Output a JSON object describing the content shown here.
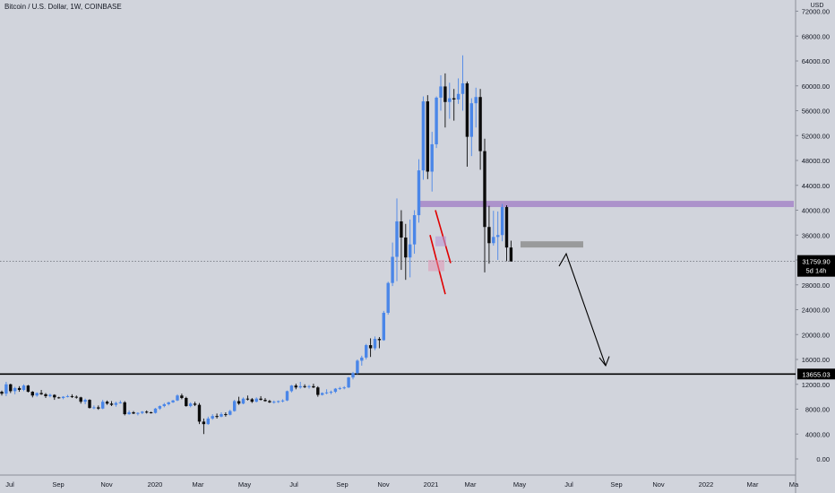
{
  "header": {
    "title": "Bitcoin / U.S. Dollar, 1W, COINBASE"
  },
  "axis": {
    "currency": "USD",
    "y_ticks": [
      "72000.00",
      "68000.00",
      "64000.00",
      "60000.00",
      "56000.00",
      "52000.00",
      "48000.00",
      "44000.00",
      "40000.00",
      "36000.00",
      "32000.00",
      "28000.00",
      "24000.00",
      "20000.00",
      "16000.00",
      "12000.00",
      "8000.00",
      "4000.00",
      "0.00"
    ],
    "x_ticks": [
      "Jul",
      "Sep",
      "Nov",
      "2020",
      "Mar",
      "May",
      "Jul",
      "Sep",
      "Nov",
      "2021",
      "Mar",
      "May",
      "Jul",
      "Sep",
      "Nov",
      "2022",
      "Mar",
      "Ma"
    ]
  },
  "price_label": {
    "value": "31759.90",
    "countdown": "5d 14h"
  },
  "support_label": "13655.03",
  "colors": {
    "background": "#d1d4dc",
    "up": "#4a86e8",
    "down": "#0b0b0b",
    "purple_zone": "#a78bc9",
    "gray_zone": "#8f8f8f",
    "red_line": "#e00000"
  },
  "chart_data": {
    "type": "candlestick",
    "timeframe": "1W",
    "ylim": [
      -2000,
      74000
    ],
    "y_scale": "linear",
    "grid": false,
    "current_price": 31759.9,
    "support_level": 13655.03,
    "resistance_zone": [
      40500,
      41500
    ],
    "pivot_zone": [
      34000,
      35000
    ],
    "candles": [
      [
        10800,
        11000,
        10200,
        10500
      ],
      [
        10500,
        12400,
        10100,
        12000
      ],
      [
        12000,
        12100,
        10600,
        10900
      ],
      [
        10900,
        11600,
        10400,
        11400
      ],
      [
        11400,
        11700,
        10800,
        11100
      ],
      [
        11100,
        12000,
        10900,
        11800
      ],
      [
        11800,
        11900,
        10700,
        10800
      ],
      [
        10800,
        10900,
        9900,
        10200
      ],
      [
        10200,
        10700,
        10000,
        10600
      ],
      [
        10600,
        11100,
        10300,
        10400
      ],
      [
        10400,
        10600,
        9800,
        10100
      ],
      [
        10100,
        10500,
        9900,
        10300
      ],
      [
        10300,
        10400,
        9500,
        9900
      ],
      [
        9900,
        10000,
        9700,
        9800
      ],
      [
        9800,
        10100,
        9600,
        10000
      ],
      [
        10000,
        10300,
        9900,
        10100
      ],
      [
        10100,
        10400,
        9800,
        10000
      ],
      [
        10000,
        10200,
        9700,
        9900
      ],
      [
        9900,
        10000,
        8900,
        9200
      ],
      [
        9200,
        9700,
        8800,
        9500
      ],
      [
        9500,
        9600,
        8100,
        8200
      ],
      [
        8200,
        8600,
        8000,
        8300
      ],
      [
        8300,
        8600,
        7900,
        8100
      ],
      [
        8100,
        9500,
        8000,
        9200
      ],
      [
        9200,
        9400,
        8700,
        8900
      ],
      [
        8900,
        9300,
        8500,
        8700
      ],
      [
        8700,
        9200,
        8400,
        9000
      ],
      [
        9000,
        9400,
        8900,
        9100
      ],
      [
        9100,
        9300,
        7000,
        7200
      ],
      [
        7200,
        7800,
        7100,
        7500
      ],
      [
        7500,
        7700,
        7200,
        7300
      ],
      [
        7300,
        7500,
        7000,
        7400
      ],
      [
        7400,
        7700,
        7200,
        7600
      ],
      [
        7600,
        7800,
        7300,
        7500
      ],
      [
        7500,
        7600,
        7300,
        7400
      ],
      [
        7400,
        8200,
        7300,
        8100
      ],
      [
        8100,
        8600,
        7900,
        8500
      ],
      [
        8500,
        9000,
        8300,
        8800
      ],
      [
        8800,
        9200,
        8600,
        9100
      ],
      [
        9100,
        9500,
        9000,
        9400
      ],
      [
        9400,
        10400,
        9300,
        10200
      ],
      [
        10200,
        10500,
        9600,
        9800
      ],
      [
        9800,
        10000,
        8400,
        8500
      ],
      [
        8500,
        9100,
        8300,
        8900
      ],
      [
        8900,
        9200,
        8500,
        8700
      ],
      [
        8700,
        9000,
        5600,
        6000
      ],
      [
        6000,
        6500,
        4000,
        5600
      ],
      [
        5600,
        6800,
        5500,
        6500
      ],
      [
        6500,
        7200,
        6300,
        6900
      ],
      [
        6900,
        7300,
        6500,
        6800
      ],
      [
        6800,
        7500,
        6700,
        7200
      ],
      [
        7200,
        7500,
        6800,
        7100
      ],
      [
        7100,
        7900,
        7000,
        7700
      ],
      [
        7700,
        9500,
        7600,
        9300
      ],
      [
        9300,
        10000,
        8700,
        8900
      ],
      [
        8900,
        9900,
        8800,
        9700
      ],
      [
        9700,
        10200,
        9400,
        9600
      ],
      [
        9600,
        9800,
        9000,
        9200
      ],
      [
        9200,
        9900,
        9100,
        9700
      ],
      [
        9700,
        10100,
        9400,
        9500
      ],
      [
        9500,
        9800,
        9200,
        9300
      ],
      [
        9300,
        9500,
        9000,
        9100
      ],
      [
        9100,
        9400,
        8900,
        9200
      ],
      [
        9200,
        9400,
        9000,
        9300
      ],
      [
        9300,
        9600,
        9100,
        9400
      ],
      [
        9400,
        11000,
        9300,
        10900
      ],
      [
        10900,
        11900,
        10700,
        11800
      ],
      [
        11800,
        12100,
        11200,
        11500
      ],
      [
        11500,
        12400,
        11300,
        11700
      ],
      [
        11700,
        12000,
        11400,
        11600
      ],
      [
        11600,
        11900,
        11300,
        11700
      ],
      [
        11700,
        12100,
        11400,
        11500
      ],
      [
        11500,
        11700,
        10000,
        10300
      ],
      [
        10300,
        10700,
        10200,
        10600
      ],
      [
        10600,
        11200,
        10400,
        10700
      ],
      [
        10700,
        11000,
        10400,
        10800
      ],
      [
        10800,
        11400,
        10600,
        11300
      ],
      [
        11300,
        11600,
        11100,
        11400
      ],
      [
        11400,
        11700,
        11200,
        11500
      ],
      [
        11500,
        13200,
        11400,
        13100
      ],
      [
        13100,
        14000,
        12800,
        13800
      ],
      [
        13800,
        16000,
        13600,
        15800
      ],
      [
        15800,
        16600,
        15000,
        16300
      ],
      [
        16300,
        18500,
        16000,
        18300
      ],
      [
        18300,
        19400,
        16400,
        17800
      ],
      [
        17800,
        19700,
        17500,
        19300
      ],
      [
        19300,
        19600,
        17800,
        19100
      ],
      [
        19100,
        23800,
        19000,
        23500
      ],
      [
        23500,
        28500,
        23200,
        28300
      ],
      [
        28300,
        34800,
        27800,
        32500
      ],
      [
        32500,
        41900,
        28600,
        38200
      ],
      [
        38200,
        40000,
        30400,
        35600
      ],
      [
        35600,
        37800,
        28800,
        32400
      ],
      [
        32400,
        38500,
        29200,
        34500
      ],
      [
        34500,
        40000,
        33000,
        39200
      ],
      [
        39200,
        48200,
        38000,
        46400
      ],
      [
        46400,
        58300,
        44900,
        57500
      ],
      [
        57500,
        58500,
        45000,
        46200
      ],
      [
        46200,
        52600,
        43000,
        50600
      ],
      [
        50600,
        58300,
        50000,
        58100
      ],
      [
        58100,
        61700,
        56000,
        59900
      ],
      [
        59900,
        62000,
        53300,
        57400
      ],
      [
        57400,
        60500,
        54700,
        58000
      ],
      [
        58000,
        59500,
        54400,
        57800
      ],
      [
        57800,
        61200,
        57100,
        58700
      ],
      [
        58700,
        64900,
        56000,
        60400
      ],
      [
        60400,
        60700,
        47000,
        51800
      ],
      [
        51800,
        58000,
        48700,
        57200
      ],
      [
        57200,
        59700,
        53300,
        58200
      ],
      [
        58200,
        59500,
        46500,
        49500
      ],
      [
        49500,
        51500,
        30000,
        37300
      ],
      [
        37300,
        40700,
        31400,
        34700
      ],
      [
        34700,
        39900,
        34300,
        35700
      ],
      [
        35700,
        39800,
        32000,
        36000
      ],
      [
        36000,
        41000,
        35000,
        40500
      ],
      [
        40500,
        40800,
        31800,
        34000
      ],
      [
        34000,
        35100,
        31800,
        31760
      ]
    ]
  }
}
